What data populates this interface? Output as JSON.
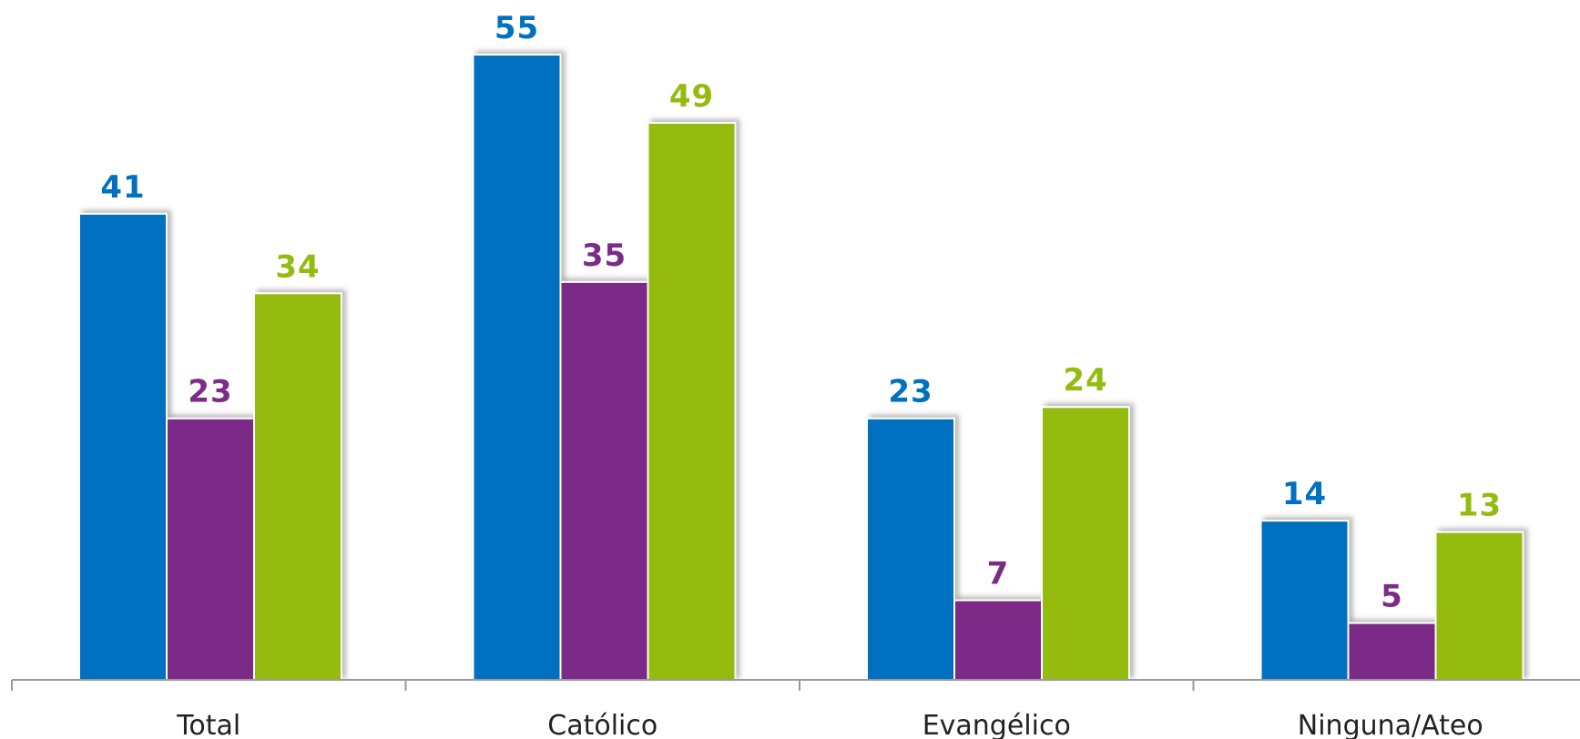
{
  "chart_data": {
    "type": "bar",
    "categories": [
      "Total",
      "Católico",
      "Evangélico",
      "Ninguna/Ateo"
    ],
    "series": [
      {
        "values": [
          41,
          55,
          23,
          14
        ],
        "color": "#0070C0"
      },
      {
        "values": [
          23,
          35,
          7,
          5
        ],
        "color": "#7B2C87"
      },
      {
        "values": [
          34,
          49,
          24,
          13
        ],
        "color": "#94BB10"
      }
    ],
    "title": "",
    "xlabel": "",
    "ylabel": "",
    "ylim": [
      0,
      60
    ],
    "grid": false,
    "legend": "none"
  }
}
